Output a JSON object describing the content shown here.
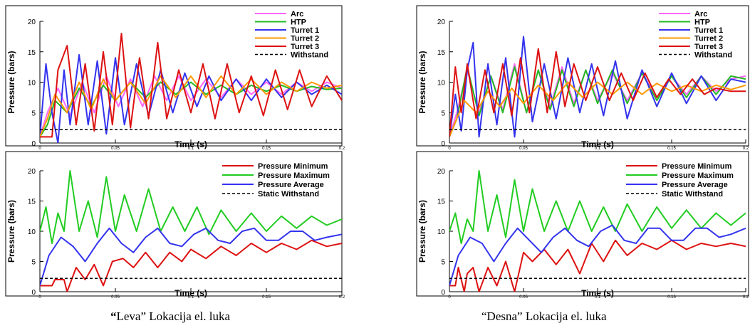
{
  "captions": {
    "left_quote_open": "“",
    "left_text": "Leva” Lokacija el. luka",
    "right_text": "“Desna” Lokacija el. luka"
  },
  "colors": {
    "Arc": "#ff66ff",
    "HTP": "#22bb22",
    "Turret 1": "#3333ee",
    "Turret 2": "#ff9900",
    "Turret 3": "#dd1111",
    "Withstand": "#000000",
    "Pressure Minimum": "#dd1111",
    "Pressure Maximum": "#22cc22",
    "Pressure Average": "#3333ee",
    "Static Withstand": "#000000"
  },
  "chart_data": [
    {
      "type": "line",
      "panel": "left-top",
      "xlabel": "Time (s)",
      "ylabel": "Pressure (bars)",
      "xlim": [
        0,
        0.2
      ],
      "ylim": [
        0,
        20
      ],
      "x_ticks": [
        "0",
        "0.05",
        "0.1",
        "0.15",
        "0.2"
      ],
      "y_ticks": [
        "0",
        "5",
        "10",
        "15",
        "20"
      ],
      "legend_position": "top-right",
      "series": [
        {
          "name": "Arc",
          "x": [
            0,
            0.005,
            0.012,
            0.02,
            0.028,
            0.036,
            0.044,
            0.052,
            0.06,
            0.068,
            0.076,
            0.084,
            0.092,
            0.1,
            0.11,
            0.12,
            0.13,
            0.14,
            0.15,
            0.16,
            0.17,
            0.18,
            0.19,
            0.2
          ],
          "values": [
            1,
            5,
            9,
            4.5,
            10,
            5,
            11,
            6,
            10.5,
            6,
            11,
            7,
            11,
            7,
            10.5,
            7.5,
            10.5,
            8,
            10,
            8,
            10,
            8.5,
            10,
            9
          ]
        },
        {
          "name": "HTP",
          "x": [
            0,
            0.005,
            0.01,
            0.018,
            0.026,
            0.034,
            0.042,
            0.05,
            0.06,
            0.07,
            0.08,
            0.09,
            0.1,
            0.11,
            0.12,
            0.13,
            0.14,
            0.15,
            0.16,
            0.17,
            0.18,
            0.19,
            0.2
          ],
          "values": [
            1,
            3,
            7,
            5,
            9,
            6,
            9.5,
            7,
            10,
            7.5,
            10,
            8,
            10,
            8,
            9.5,
            8,
            9.5,
            8.5,
            9.5,
            8.5,
            9.3,
            8.8,
            9
          ]
        },
        {
          "name": "Turret 1",
          "x": [
            0,
            0.004,
            0.008,
            0.012,
            0.016,
            0.02,
            0.026,
            0.032,
            0.038,
            0.044,
            0.05,
            0.056,
            0.064,
            0.072,
            0.08,
            0.088,
            0.096,
            0.104,
            0.112,
            0.12,
            0.13,
            0.14,
            0.15,
            0.16,
            0.17,
            0.18,
            0.19,
            0.2
          ],
          "values": [
            1,
            13,
            5,
            0,
            12,
            3,
            14.5,
            3,
            13.5,
            1.5,
            14,
            3,
            13,
            4.5,
            12,
            5,
            11.5,
            6,
            11,
            7,
            10.5,
            7,
            10.5,
            7.5,
            10,
            8,
            9.5,
            8
          ]
        },
        {
          "name": "Turret 2",
          "x": [
            0,
            0.005,
            0.01,
            0.018,
            0.026,
            0.034,
            0.042,
            0.05,
            0.06,
            0.07,
            0.08,
            0.09,
            0.1,
            0.11,
            0.12,
            0.13,
            0.14,
            0.15,
            0.16,
            0.17,
            0.18,
            0.19,
            0.2
          ],
          "values": [
            1,
            4,
            8,
            5,
            10,
            5.5,
            10.5,
            7,
            10,
            6.5,
            11,
            7.5,
            11,
            7.5,
            11,
            8,
            10.5,
            8,
            10,
            8.5,
            10,
            9,
            9.5
          ]
        },
        {
          "name": "Turret 3",
          "x": [
            0,
            0.004,
            0.008,
            0.012,
            0.018,
            0.024,
            0.03,
            0.036,
            0.042,
            0.048,
            0.054,
            0.06,
            0.066,
            0.072,
            0.078,
            0.084,
            0.092,
            0.1,
            0.108,
            0.116,
            0.124,
            0.132,
            0.14,
            0.148,
            0.156,
            0.164,
            0.172,
            0.18,
            0.19,
            0.2
          ],
          "values": [
            1,
            1,
            1,
            12,
            16,
            3,
            13,
            2,
            15,
            3,
            18,
            2.5,
            14,
            4,
            16.5,
            4,
            12,
            5,
            13,
            4,
            13,
            5,
            11,
            4.5,
            12,
            5.5,
            12,
            6,
            11,
            7
          ]
        },
        {
          "name": "Withstand",
          "x": [
            0,
            0.2
          ],
          "values": [
            2.2,
            2.2
          ],
          "dashed": true
        }
      ]
    },
    {
      "type": "line",
      "panel": "right-top",
      "xlabel": "Time (s)",
      "ylabel": "Pressure (bars)",
      "xlim": [
        0,
        0.2
      ],
      "ylim": [
        0,
        20
      ],
      "x_ticks": [
        "0",
        "0.05",
        "0.1",
        "0.15",
        "0.2"
      ],
      "y_ticks": [
        "0",
        "5",
        "10",
        "15",
        "20"
      ],
      "legend_position": "top-right",
      "series": [
        {
          "name": "Arc",
          "x": [
            0,
            0.005,
            0.012,
            0.02,
            0.028,
            0.036,
            0.044,
            0.052,
            0.06,
            0.068,
            0.076,
            0.084,
            0.092,
            0.1,
            0.11,
            0.12,
            0.13,
            0.14,
            0.15,
            0.16,
            0.17,
            0.18,
            0.19,
            0.2
          ],
          "values": [
            1,
            5,
            12,
            5,
            11,
            5.5,
            13,
            5,
            12,
            6,
            12.5,
            6.5,
            12,
            7,
            11.5,
            7,
            11.5,
            7.5,
            11,
            8,
            11,
            8.5,
            10.5,
            11
          ]
        },
        {
          "name": "HTP",
          "x": [
            0,
            0.005,
            0.012,
            0.02,
            0.028,
            0.036,
            0.044,
            0.052,
            0.06,
            0.068,
            0.076,
            0.084,
            0.092,
            0.1,
            0.11,
            0.12,
            0.13,
            0.14,
            0.15,
            0.16,
            0.17,
            0.18,
            0.19,
            0.2
          ],
          "values": [
            1,
            4,
            12.5,
            4.5,
            11,
            5,
            12.5,
            5,
            12,
            5.5,
            12,
            6,
            12,
            6.5,
            12,
            6.5,
            11.5,
            7,
            11,
            7.5,
            11,
            8,
            11,
            10.5
          ]
        },
        {
          "name": "Turret 1",
          "x": [
            0,
            0.004,
            0.008,
            0.012,
            0.016,
            0.02,
            0.026,
            0.032,
            0.038,
            0.044,
            0.05,
            0.056,
            0.064,
            0.072,
            0.08,
            0.088,
            0.096,
            0.104,
            0.112,
            0.12,
            0.13,
            0.14,
            0.15,
            0.16,
            0.17,
            0.18,
            0.19,
            0.2
          ],
          "values": [
            1,
            8,
            2,
            12,
            16.5,
            1,
            13,
            3,
            14,
            1,
            17.5,
            3.5,
            13,
            4,
            14,
            5,
            13,
            4.5,
            13.5,
            4,
            12,
            6,
            11.5,
            6.5,
            11,
            7,
            10.5,
            10
          ]
        },
        {
          "name": "Turret 2",
          "x": [
            0,
            0.005,
            0.01,
            0.018,
            0.026,
            0.034,
            0.042,
            0.05,
            0.06,
            0.07,
            0.08,
            0.09,
            0.1,
            0.11,
            0.12,
            0.13,
            0.14,
            0.15,
            0.16,
            0.17,
            0.18,
            0.19,
            0.2
          ],
          "values": [
            1,
            4,
            7,
            5,
            8.5,
            6,
            9,
            6.5,
            9.5,
            7,
            10,
            7.5,
            10,
            8,
            10,
            8,
            9.8,
            8.5,
            9.5,
            8.5,
            9.5,
            8.8,
            9.5
          ]
        },
        {
          "name": "Turret 3",
          "x": [
            0,
            0.004,
            0.008,
            0.012,
            0.018,
            0.024,
            0.03,
            0.036,
            0.042,
            0.048,
            0.054,
            0.06,
            0.066,
            0.072,
            0.078,
            0.084,
            0.092,
            0.1,
            0.108,
            0.116,
            0.124,
            0.132,
            0.14,
            0.148,
            0.156,
            0.164,
            0.172,
            0.18,
            0.19,
            0.2
          ],
          "values": [
            1,
            12.5,
            5,
            13,
            4,
            12,
            5,
            13,
            4.5,
            14,
            5,
            15.5,
            5,
            15,
            6,
            13,
            7,
            12.5,
            7,
            11.5,
            7,
            11.5,
            7.5,
            10.5,
            8,
            10.5,
            8,
            9,
            8.5,
            8.5
          ]
        },
        {
          "name": "Withstand",
          "x": [
            0,
            0.2
          ],
          "values": [
            2.2,
            2.2
          ],
          "dashed": true
        }
      ]
    },
    {
      "type": "line",
      "panel": "left-bottom",
      "xlabel": "Time (s)",
      "ylabel": "Pressure (bars)",
      "xlim": [
        0,
        0.2
      ],
      "ylim": [
        0,
        20
      ],
      "x_ticks": [
        "0",
        "0.05",
        "0.1",
        "0.15",
        "0.2"
      ],
      "y_ticks": [
        "0",
        "5",
        "10",
        "15",
        "20"
      ],
      "legend_position": "top-right",
      "series": [
        {
          "name": "Pressure Minimum",
          "x": [
            0,
            0.008,
            0.01,
            0.016,
            0.018,
            0.024,
            0.03,
            0.036,
            0.042,
            0.048,
            0.055,
            0.062,
            0.07,
            0.078,
            0.086,
            0.094,
            0.1,
            0.11,
            0.12,
            0.13,
            0.14,
            0.15,
            0.16,
            0.17,
            0.18,
            0.19,
            0.2
          ],
          "values": [
            1,
            1,
            2,
            2,
            0,
            4,
            2,
            4.5,
            1,
            5,
            5.5,
            4,
            6.5,
            4,
            6.5,
            5,
            7,
            5.5,
            7.5,
            6,
            8,
            6.5,
            8,
            7,
            8.5,
            7.5,
            8
          ]
        },
        {
          "name": "Pressure Maximum",
          "x": [
            0,
            0.004,
            0.008,
            0.012,
            0.016,
            0.02,
            0.026,
            0.032,
            0.038,
            0.044,
            0.05,
            0.056,
            0.064,
            0.072,
            0.08,
            0.088,
            0.096,
            0.104,
            0.112,
            0.12,
            0.13,
            0.14,
            0.15,
            0.16,
            0.17,
            0.18,
            0.19,
            0.2
          ],
          "values": [
            10,
            14,
            8,
            13,
            10,
            20,
            10,
            15,
            9,
            19,
            10,
            16,
            10,
            17,
            10,
            14,
            10,
            14,
            9.5,
            13.5,
            10,
            13,
            10,
            12.5,
            10.5,
            12.5,
            11,
            12
          ]
        },
        {
          "name": "Pressure Average",
          "x": [
            0,
            0.006,
            0.014,
            0.022,
            0.03,
            0.038,
            0.046,
            0.054,
            0.062,
            0.07,
            0.078,
            0.086,
            0.094,
            0.102,
            0.11,
            0.118,
            0.126,
            0.134,
            0.142,
            0.15,
            0.158,
            0.166,
            0.174,
            0.182,
            0.19,
            0.2
          ],
          "values": [
            1,
            6,
            9,
            7.5,
            5,
            8,
            10.5,
            8,
            6.5,
            9,
            10.5,
            8,
            7.5,
            9.5,
            10.5,
            8.5,
            8,
            10,
            10.5,
            8.5,
            8.5,
            10,
            10,
            8.5,
            9,
            9.5
          ]
        },
        {
          "name": "Static Withstand",
          "x": [
            0,
            0.2
          ],
          "values": [
            2.2,
            2.2
          ],
          "dashed": true
        }
      ]
    },
    {
      "type": "line",
      "panel": "right-bottom",
      "xlabel": "Time (s)",
      "ylabel": "Pressure (bars)",
      "xlim": [
        0,
        0.2
      ],
      "ylim": [
        0,
        20
      ],
      "x_ticks": [
        "0",
        "0.05",
        "0.1",
        "0.15",
        "0.2"
      ],
      "y_ticks": [
        "0",
        "5",
        "10",
        "15",
        "20"
      ],
      "legend_position": "top-right",
      "series": [
        {
          "name": "Pressure Minimum",
          "x": [
            0,
            0.004,
            0.006,
            0.01,
            0.012,
            0.016,
            0.02,
            0.026,
            0.032,
            0.038,
            0.044,
            0.05,
            0.056,
            0.064,
            0.072,
            0.08,
            0.088,
            0.096,
            0.104,
            0.112,
            0.12,
            0.13,
            0.14,
            0.15,
            0.16,
            0.17,
            0.18,
            0.19,
            0.2
          ],
          "values": [
            1,
            1,
            4,
            0,
            3,
            4,
            0,
            4,
            1,
            5,
            0,
            6.5,
            5,
            7,
            4.5,
            7,
            3,
            8,
            5,
            8.5,
            6,
            8,
            7,
            8.5,
            7,
            8,
            7.5,
            8,
            7.5
          ]
        },
        {
          "name": "Pressure Maximum",
          "x": [
            0,
            0.004,
            0.008,
            0.012,
            0.016,
            0.02,
            0.026,
            0.032,
            0.038,
            0.044,
            0.05,
            0.056,
            0.064,
            0.072,
            0.08,
            0.088,
            0.096,
            0.104,
            0.112,
            0.12,
            0.13,
            0.14,
            0.15,
            0.16,
            0.17,
            0.18,
            0.19,
            0.2
          ],
          "values": [
            10,
            13,
            8,
            12,
            10,
            20,
            10,
            16,
            9,
            18.5,
            10,
            17,
            10,
            15,
            10,
            15,
            10,
            14,
            10,
            14.5,
            10,
            14,
            10.5,
            13.5,
            10.5,
            13,
            11,
            13
          ]
        },
        {
          "name": "Pressure Average",
          "x": [
            0,
            0.006,
            0.014,
            0.022,
            0.03,
            0.038,
            0.046,
            0.054,
            0.062,
            0.07,
            0.078,
            0.086,
            0.094,
            0.102,
            0.11,
            0.118,
            0.126,
            0.134,
            0.142,
            0.15,
            0.158,
            0.166,
            0.174,
            0.182,
            0.19,
            0.2
          ],
          "values": [
            1,
            6,
            9,
            8,
            5,
            8,
            10.5,
            8.5,
            6.5,
            9,
            10.5,
            8.5,
            7.5,
            10,
            11,
            8.5,
            8,
            10.5,
            10.5,
            8.5,
            8.5,
            10.5,
            10.5,
            9,
            9.5,
            10.5
          ]
        },
        {
          "name": "Static Withstand",
          "x": [
            0,
            0.2
          ],
          "values": [
            2.2,
            2.2
          ],
          "dashed": true
        }
      ]
    }
  ]
}
